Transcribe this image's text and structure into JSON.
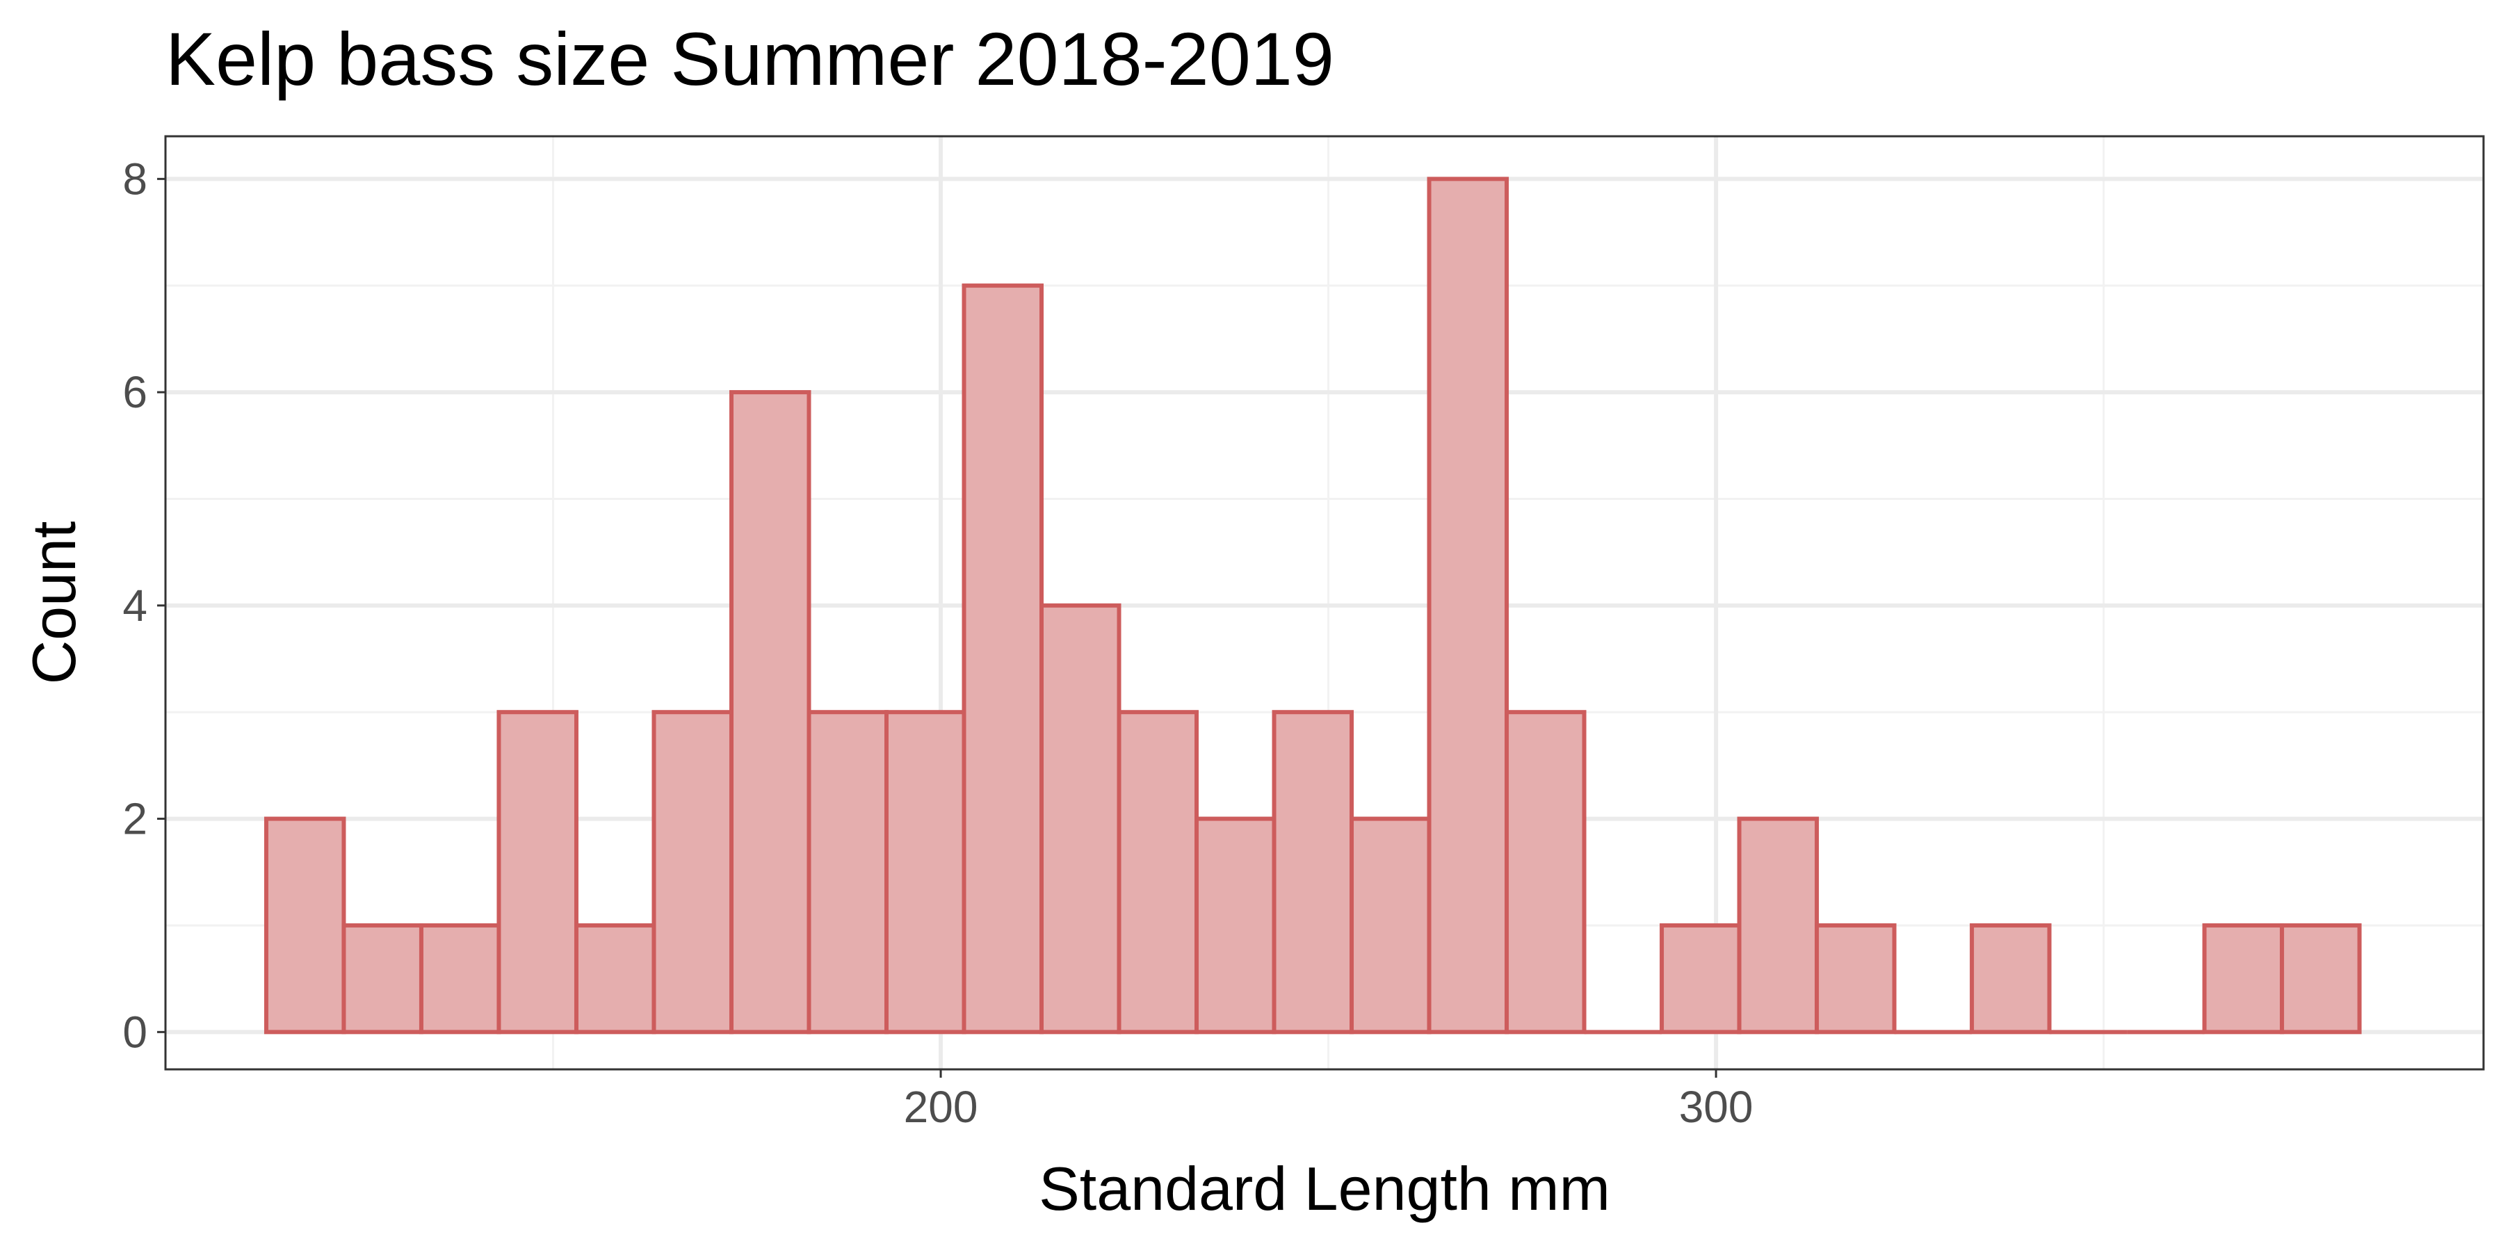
{
  "chart_data": {
    "type": "histogram",
    "title": "Kelp bass size Summer 2018-2019",
    "xlabel": "Standard Length mm",
    "ylabel": "Count",
    "xlim": [
      100,
      399
    ],
    "ylim": [
      -0.35,
      8.4
    ],
    "x_ticks": [
      200,
      300
    ],
    "x_minor_ticks": [
      150,
      250,
      350
    ],
    "y_ticks": [
      0,
      2,
      4,
      6,
      8
    ],
    "y_minor_ticks": [
      1,
      3,
      5,
      7
    ],
    "bin_width": 10,
    "bins": [
      {
        "x0": 113,
        "x1": 123,
        "count": 2
      },
      {
        "x0": 123,
        "x1": 133,
        "count": 1
      },
      {
        "x0": 133,
        "x1": 143,
        "count": 1
      },
      {
        "x0": 143,
        "x1": 153,
        "count": 3
      },
      {
        "x0": 153,
        "x1": 163,
        "count": 1
      },
      {
        "x0": 163,
        "x1": 173,
        "count": 3
      },
      {
        "x0": 173,
        "x1": 183,
        "count": 6
      },
      {
        "x0": 183,
        "x1": 193,
        "count": 3
      },
      {
        "x0": 193,
        "x1": 203,
        "count": 3
      },
      {
        "x0": 203,
        "x1": 213,
        "count": 7
      },
      {
        "x0": 213,
        "x1": 223,
        "count": 4
      },
      {
        "x0": 223,
        "x1": 233,
        "count": 3
      },
      {
        "x0": 233,
        "x1": 243,
        "count": 2
      },
      {
        "x0": 243,
        "x1": 253,
        "count": 3
      },
      {
        "x0": 253,
        "x1": 263,
        "count": 2
      },
      {
        "x0": 263,
        "x1": 273,
        "count": 8
      },
      {
        "x0": 273,
        "x1": 283,
        "count": 3
      },
      {
        "x0": 283,
        "x1": 293,
        "count": 0
      },
      {
        "x0": 293,
        "x1": 303,
        "count": 1
      },
      {
        "x0": 303,
        "x1": 313,
        "count": 2
      },
      {
        "x0": 313,
        "x1": 323,
        "count": 1
      },
      {
        "x0": 323,
        "x1": 333,
        "count": 0
      },
      {
        "x0": 333,
        "x1": 343,
        "count": 1
      },
      {
        "x0": 343,
        "x1": 353,
        "count": 0
      },
      {
        "x0": 353,
        "x1": 363,
        "count": 0
      },
      {
        "x0": 363,
        "x1": 373,
        "count": 1
      },
      {
        "x0": 373,
        "x1": 383,
        "count": 1
      }
    ],
    "colors": {
      "bar_fill": "#e5aeae",
      "bar_stroke": "#cd5c5c",
      "grid_major": "#ebebeb",
      "grid_minor": "#f2f2f2",
      "panel_border": "#333333",
      "tick_label": "#4d4d4d"
    },
    "grid": true,
    "legend": "none"
  }
}
